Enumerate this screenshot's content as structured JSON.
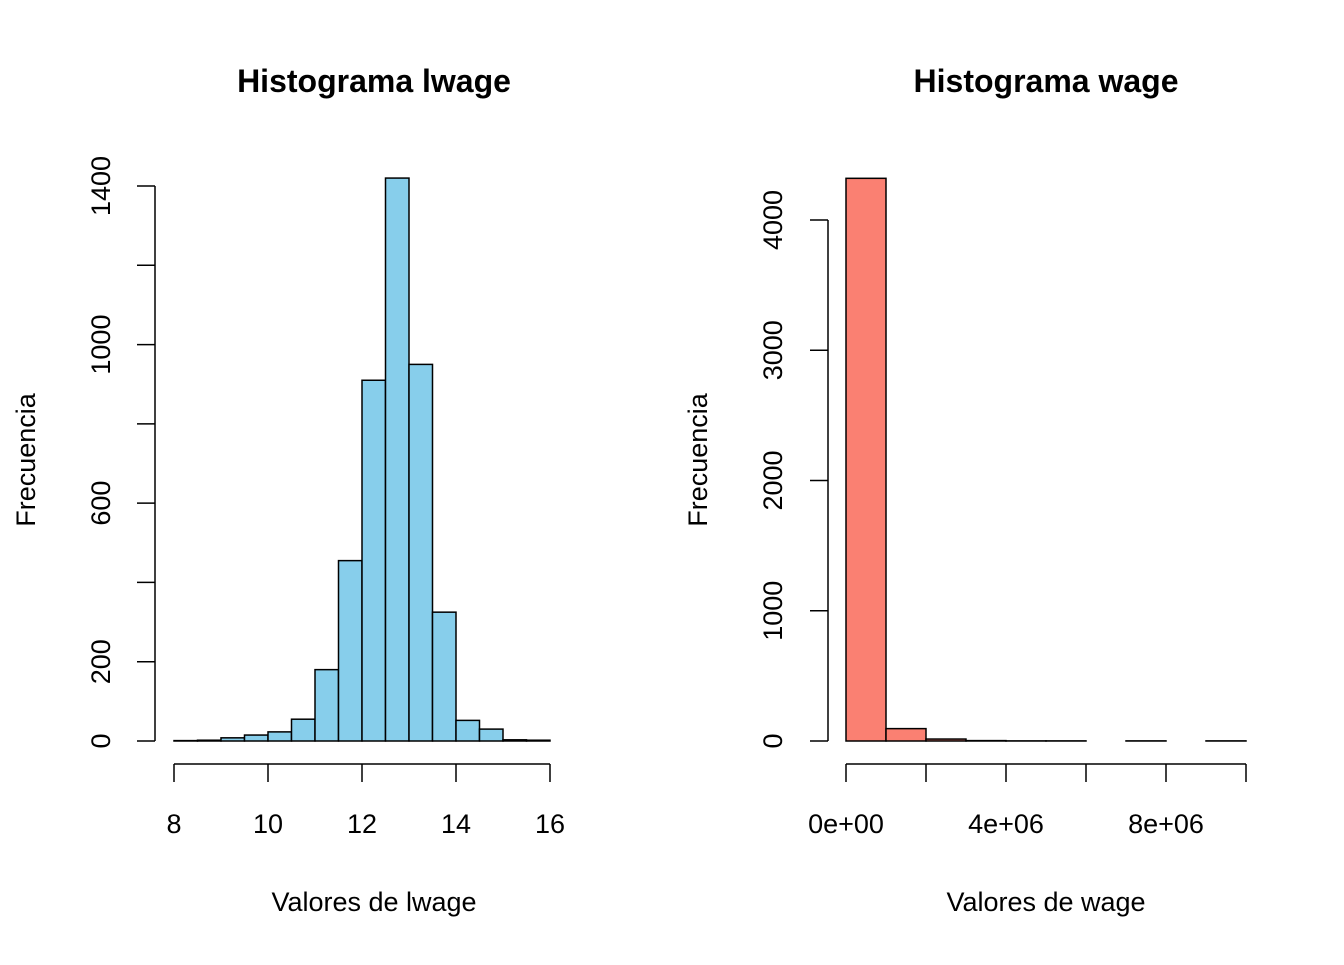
{
  "chart_data": [
    {
      "id": "left",
      "type": "bar",
      "title": "Histograma lwage",
      "xlabel": "Valores de lwage",
      "ylabel": "Frecuencia",
      "bar_color": "#87CEEB",
      "border_color": "#000000",
      "bin_edges": [
        8,
        8.5,
        9,
        9.5,
        10,
        10.5,
        11,
        11.5,
        12,
        12.5,
        13,
        13.5,
        14,
        14.5,
        15,
        15.5,
        16
      ],
      "values": [
        1,
        2,
        8,
        15,
        23,
        55,
        180,
        455,
        910,
        1420,
        950,
        325,
        52,
        30,
        3,
        2
      ],
      "xlim": [
        8,
        16.5
      ],
      "ylim": [
        0,
        1400
      ],
      "xticks": [
        8,
        10,
        12,
        14,
        16
      ],
      "xtick_labels": [
        "8",
        "10",
        "12",
        "14",
        "16"
      ],
      "yticks": [
        0,
        200,
        400,
        600,
        800,
        1000,
        1200,
        1400
      ],
      "ytick_labels": [
        "0",
        "200",
        "",
        "600",
        "",
        "1000",
        "",
        "1400"
      ],
      "grid": false
    },
    {
      "id": "right",
      "type": "bar",
      "title": "Histograma wage",
      "xlabel": "Valores de wage",
      "ylabel": "Frecuencia",
      "bar_color": "#FA8072",
      "border_color": "#000000",
      "bin_edges": [
        0,
        1000000,
        2000000,
        3000000,
        4000000,
        5000000,
        6000000,
        7000000,
        8000000,
        9000000,
        10000000
      ],
      "values": [
        4320,
        95,
        15,
        3,
        1,
        1,
        0,
        1,
        0,
        1
      ],
      "xlim": [
        0,
        10000000
      ],
      "ylim": [
        0,
        4000
      ],
      "xticks": [
        0,
        2000000,
        4000000,
        6000000,
        8000000,
        10000000
      ],
      "xtick_labels": [
        "0e+00",
        "",
        "4e+06",
        "",
        "8e+06",
        ""
      ],
      "yticks": [
        0,
        1000,
        2000,
        3000,
        4000
      ],
      "ytick_labels": [
        "0",
        "1000",
        "2000",
        "3000",
        "4000"
      ],
      "grid": false
    }
  ]
}
